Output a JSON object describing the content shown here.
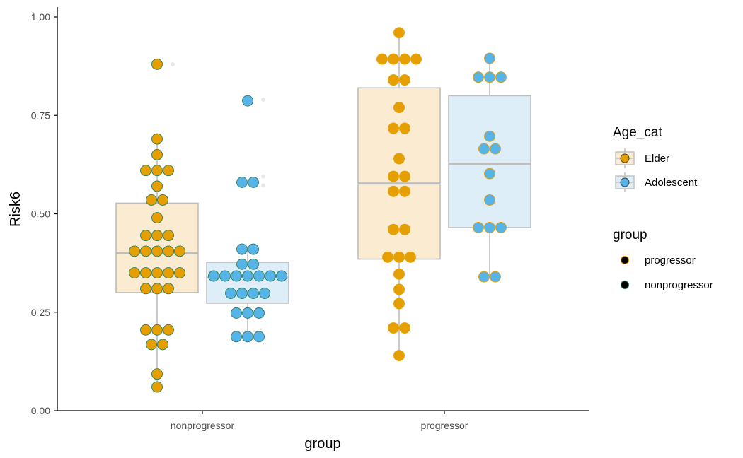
{
  "chart_data": {
    "type": "boxplot-dotplot",
    "xlabel": "group",
    "ylabel": "Risk6",
    "categories": [
      "nonprogressor",
      "progressor"
    ],
    "ylim": [
      0,
      1
    ],
    "yticks": [
      "0.00",
      "0.25",
      "0.50",
      "0.75",
      "1.00"
    ],
    "grid": false,
    "legend_position": "right",
    "colors": {
      "Elder": "#E69F00",
      "Adolescent": "#56B4E9",
      "Elder_box_fill": "#FAEBD1",
      "Adolescent_box_fill": "#DDEEF8",
      "box_stroke": "#BEBEBE",
      "nonprogressor_outline": "#2E7D5A",
      "progressor_outline": "#E69F00"
    },
    "series": [
      {
        "name": "Elder",
        "group": "nonprogressor",
        "box": {
          "q1": 0.3,
          "median": 0.4,
          "q3": 0.527,
          "whisker_low": 0.06,
          "whisker_high": 0.69
        },
        "outliers": [
          0.88
        ],
        "points": [
          0.88,
          0.69,
          0.65,
          0.61,
          0.61,
          0.61,
          0.57,
          0.535,
          0.535,
          0.49,
          0.445,
          0.445,
          0.445,
          0.405,
          0.405,
          0.405,
          0.405,
          0.405,
          0.35,
          0.35,
          0.35,
          0.35,
          0.35,
          0.31,
          0.31,
          0.31,
          0.205,
          0.205,
          0.205,
          0.168,
          0.168,
          0.093,
          0.06
        ]
      },
      {
        "name": "Adolescent",
        "group": "nonprogressor",
        "box": {
          "q1": 0.273,
          "median": 0.338,
          "q3": 0.377,
          "whisker_low": 0.19,
          "whisker_high": 0.415
        },
        "outliers": [
          0.79,
          0.595,
          0.572
        ],
        "points": [
          0.787,
          0.58,
          0.58,
          0.41,
          0.41,
          0.372,
          0.372,
          0.342,
          0.342,
          0.342,
          0.342,
          0.342,
          0.342,
          0.342,
          0.298,
          0.298,
          0.298,
          0.298,
          0.248,
          0.248,
          0.248,
          0.188,
          0.188,
          0.188
        ]
      },
      {
        "name": "Elder",
        "group": "progressor",
        "box": {
          "q1": 0.385,
          "median": 0.577,
          "q3": 0.82,
          "whisker_low": 0.14,
          "whisker_high": 0.96
        },
        "outliers": [],
        "points": [
          0.96,
          0.893,
          0.893,
          0.893,
          0.893,
          0.84,
          0.84,
          0.77,
          0.717,
          0.717,
          0.64,
          0.595,
          0.595,
          0.557,
          0.557,
          0.46,
          0.46,
          0.39,
          0.39,
          0.39,
          0.347,
          0.308,
          0.272,
          0.21,
          0.21,
          0.14
        ]
      },
      {
        "name": "Adolescent",
        "group": "progressor",
        "box": {
          "q1": 0.465,
          "median": 0.627,
          "q3": 0.8,
          "whisker_low": 0.335,
          "whisker_high": 0.895
        },
        "outliers": [],
        "points": [
          0.895,
          0.847,
          0.847,
          0.847,
          0.697,
          0.665,
          0.665,
          0.602,
          0.535,
          0.465,
          0.465,
          0.465,
          0.34,
          0.34
        ]
      }
    ],
    "legends": [
      {
        "title": "Age_cat",
        "entries": [
          "Elder",
          "Adolescent"
        ]
      },
      {
        "title": "group",
        "entries": [
          "progressor",
          "nonprogressor"
        ]
      }
    ]
  }
}
